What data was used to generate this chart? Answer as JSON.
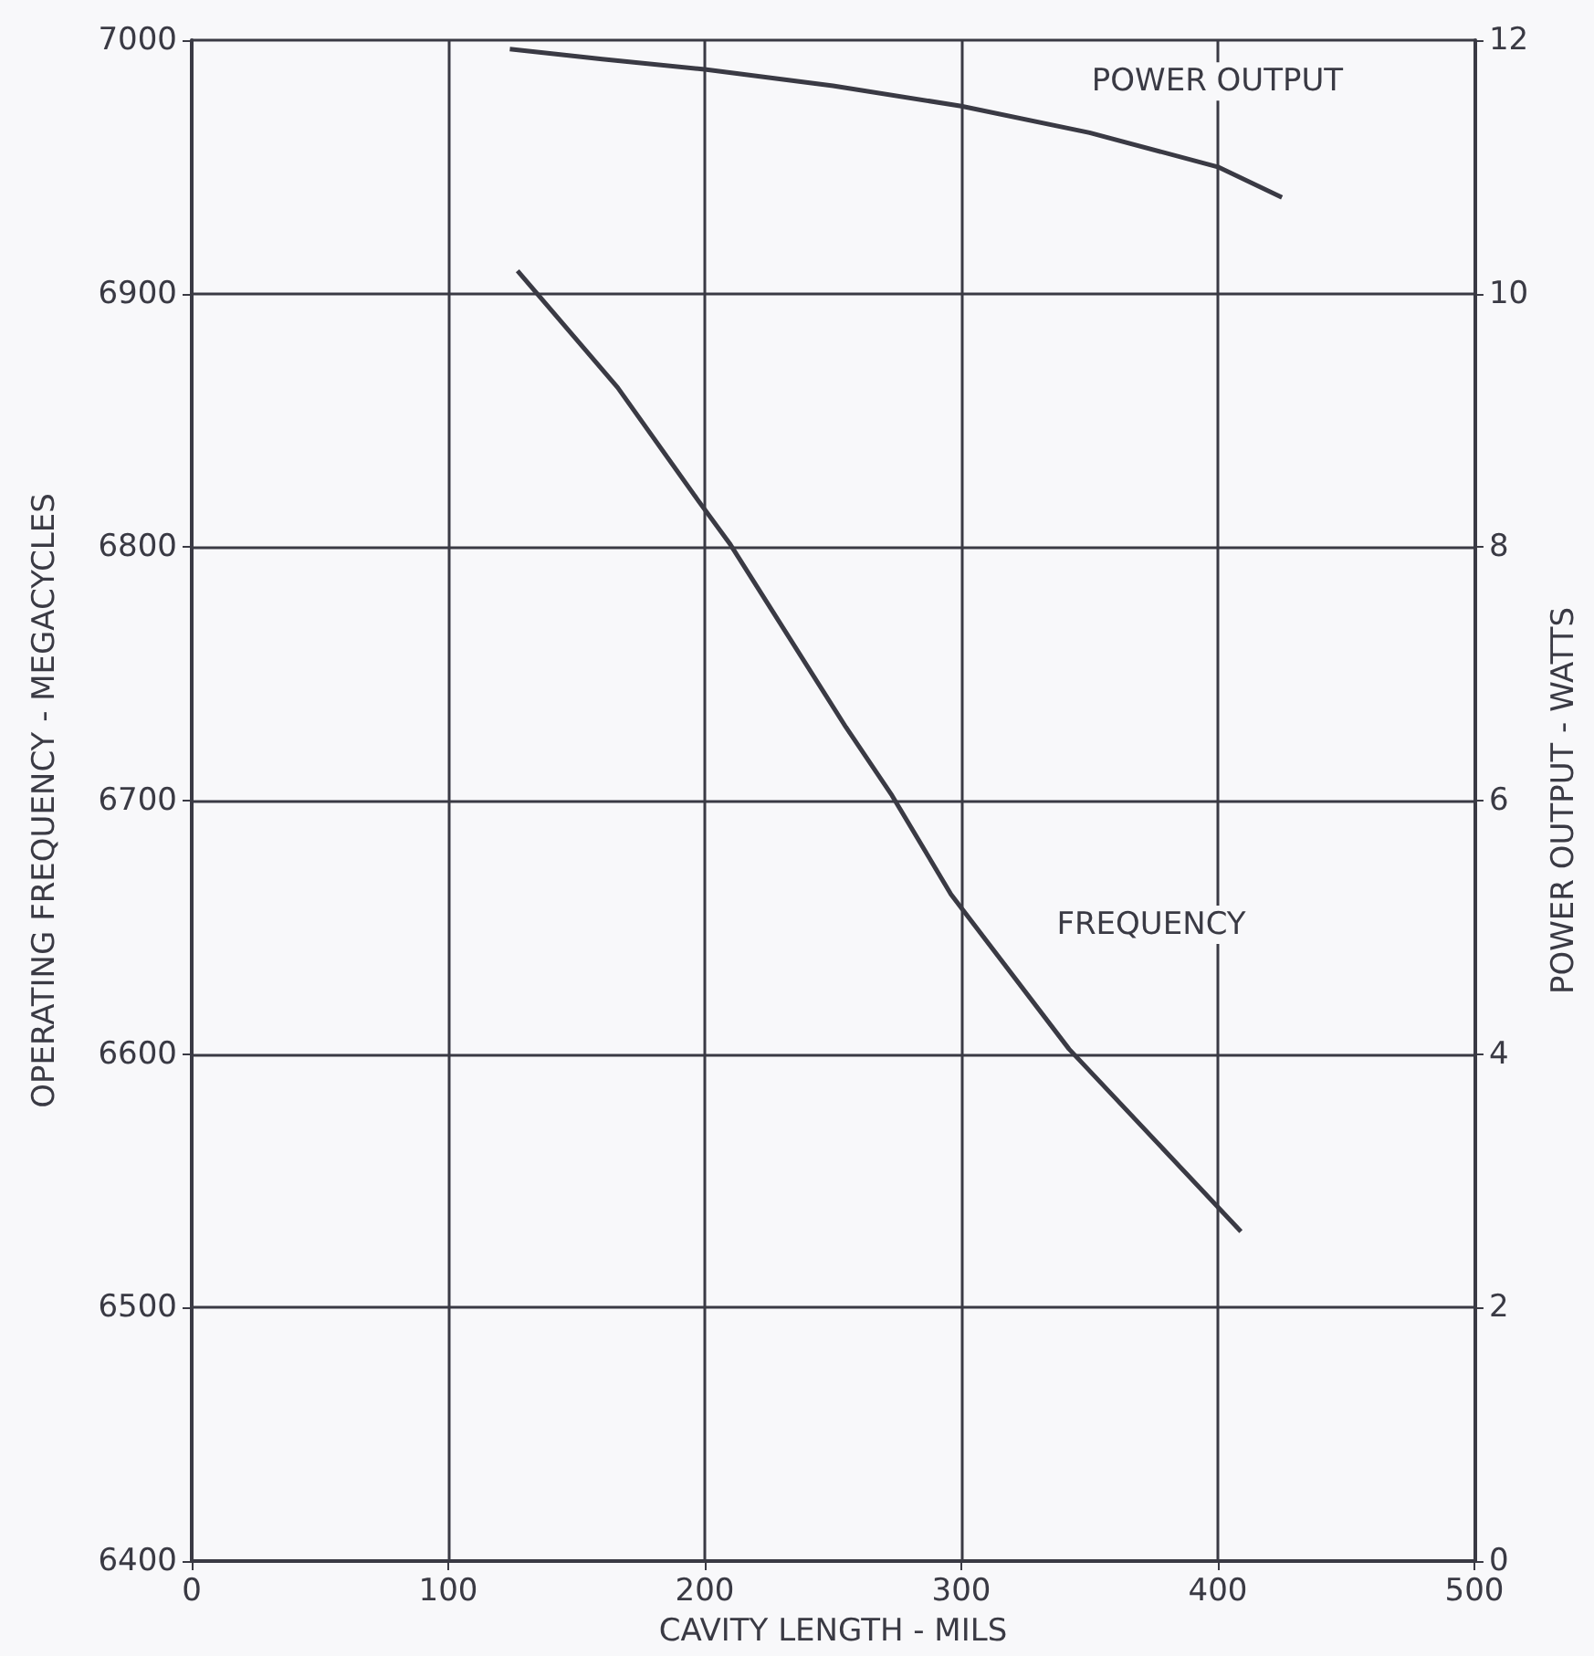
{
  "chart_data": {
    "type": "line",
    "xlabel": "CAVITY LENGTH - MILS",
    "ylabel": "OPERATING FREQUENCY - MEGACYCLES",
    "y2label": "POWER OUTPUT - WATTS",
    "xlim": [
      0,
      500
    ],
    "xticks": [
      0,
      100,
      200,
      300,
      400,
      500
    ],
    "ylim": [
      6400,
      7000
    ],
    "yticks": [
      6400,
      6500,
      6600,
      6700,
      6800,
      6900,
      7000
    ],
    "y2lim": [
      0,
      12
    ],
    "y2ticks": [
      0,
      2,
      4,
      6,
      8,
      10,
      12
    ],
    "grid": true,
    "legend": false,
    "marker": "none",
    "line_style": "solid",
    "series": [
      {
        "name": "POWER OUTPUT",
        "color": "#3a3a44",
        "axis": "y2",
        "x": [
          124,
          160,
          200,
          250,
          300,
          350,
          400,
          425
        ],
        "values": [
          11.93,
          11.85,
          11.77,
          11.64,
          11.48,
          11.27,
          11.0,
          10.76
        ]
      },
      {
        "name": "FREQUENCY",
        "color": "#3a3a44",
        "x": [
          127,
          166,
          197,
          210,
          255,
          273,
          296,
          342,
          409
        ],
        "values": [
          6909,
          6863,
          6819,
          6801,
          6729,
          6702,
          6663,
          6602,
          6530
        ]
      }
    ]
  }
}
